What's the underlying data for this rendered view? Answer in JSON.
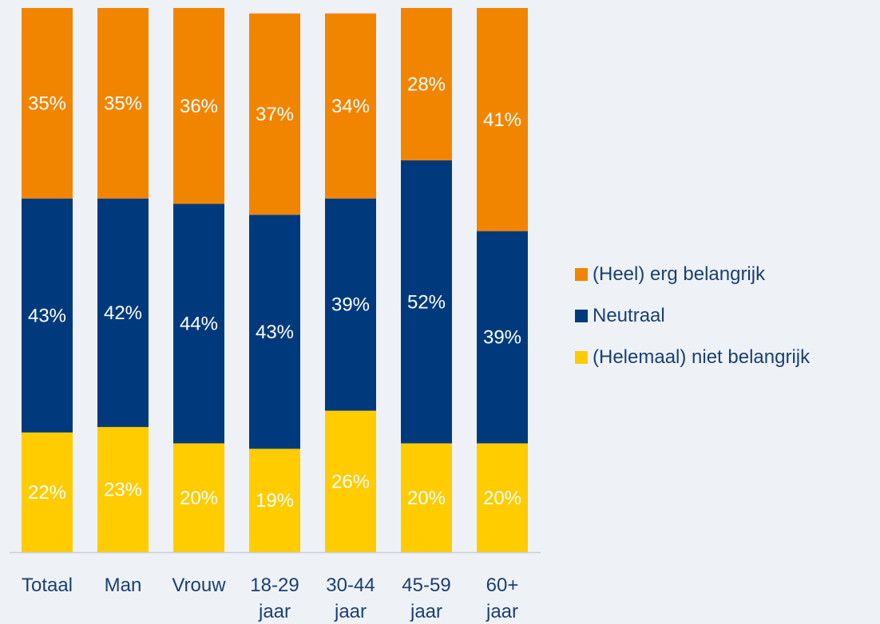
{
  "chart_data": {
    "type": "bar",
    "stacked": true,
    "percent": true,
    "categories": [
      [
        "Totaal"
      ],
      [
        "Man"
      ],
      [
        "Vrouw"
      ],
      [
        "18-29",
        "jaar"
      ],
      [
        "30-44",
        "jaar"
      ],
      [
        "45-59",
        "jaar"
      ],
      [
        "60+",
        "jaar"
      ]
    ],
    "series": [
      {
        "name": "(Helemaal) niet belangrijk",
        "color": "#ffcc00",
        "values": [
          22,
          23,
          20,
          19,
          26,
          20,
          20
        ],
        "label_color": "#ffffff"
      },
      {
        "name": "Neutraal",
        "color": "#003a7d",
        "values": [
          43,
          42,
          44,
          43,
          39,
          52,
          39
        ],
        "label_color": "#ffffff"
      },
      {
        "name": "(Heel) erg belangrijk",
        "color": "#f28500",
        "values": [
          35,
          35,
          36,
          37,
          34,
          28,
          41
        ],
        "label_color": "#ffffff"
      }
    ],
    "legend_order": [
      "(Heel) erg belangrijk",
      "Neutraal",
      "(Helemaal) niet belangrijk"
    ],
    "legend_position": "right",
    "ylim": [
      0,
      100
    ],
    "title": "",
    "xlabel": "",
    "ylabel": "",
    "grid": false
  },
  "colors": {
    "background": "#eef2f7",
    "axis": "#c8ced6",
    "tick_text": "#1b3f73"
  }
}
